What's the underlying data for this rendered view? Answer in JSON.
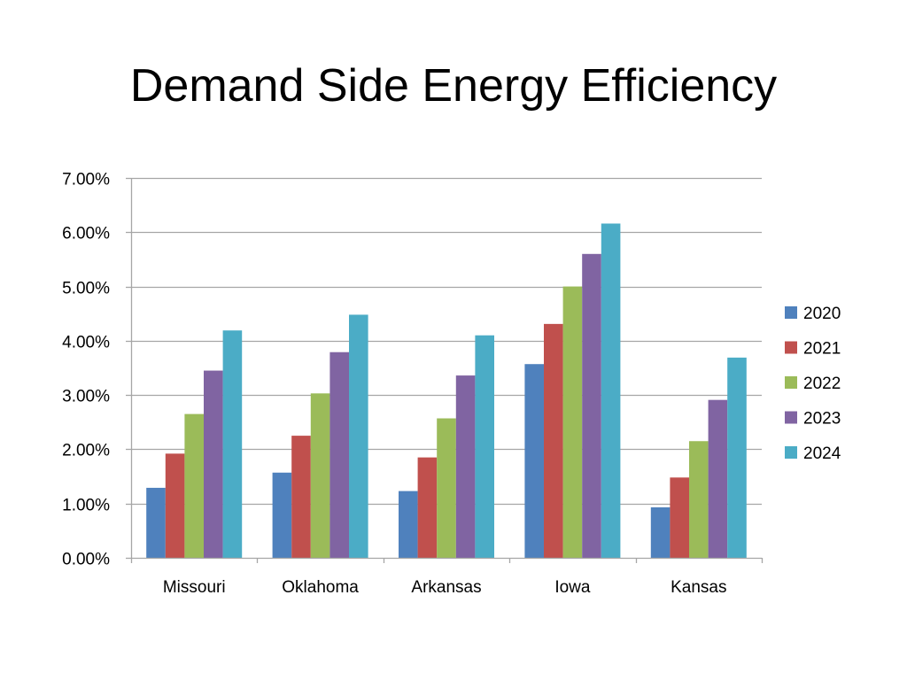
{
  "slide": {
    "title": "Demand Side Energy Efficiency"
  },
  "chart_data": {
    "type": "bar",
    "title": "",
    "xlabel": "",
    "ylabel": "",
    "categories": [
      "Missouri",
      "Oklahoma",
      "Arkansas",
      "Iowa",
      "Kansas"
    ],
    "series": [
      {
        "name": "2020",
        "color": "#4F81BD",
        "values": [
          1.29,
          1.57,
          1.23,
          3.57,
          0.93
        ]
      },
      {
        "name": "2021",
        "color": "#C0504D",
        "values": [
          1.92,
          2.25,
          1.85,
          4.31,
          1.48
        ]
      },
      {
        "name": "2022",
        "color": "#9BBB59",
        "values": [
          2.65,
          3.03,
          2.57,
          5.0,
          2.15
        ]
      },
      {
        "name": "2023",
        "color": "#8064A2",
        "values": [
          3.45,
          3.79,
          3.36,
          5.6,
          2.91
        ]
      },
      {
        "name": "2024",
        "color": "#4BACC6",
        "values": [
          4.19,
          4.48,
          4.1,
          6.16,
          3.69
        ]
      }
    ],
    "y_ticks": [
      "0.00%",
      "1.00%",
      "2.00%",
      "3.00%",
      "4.00%",
      "5.00%",
      "6.00%",
      "7.00%"
    ],
    "ylim": [
      0,
      7
    ],
    "grid": true,
    "legend_position": "right"
  }
}
